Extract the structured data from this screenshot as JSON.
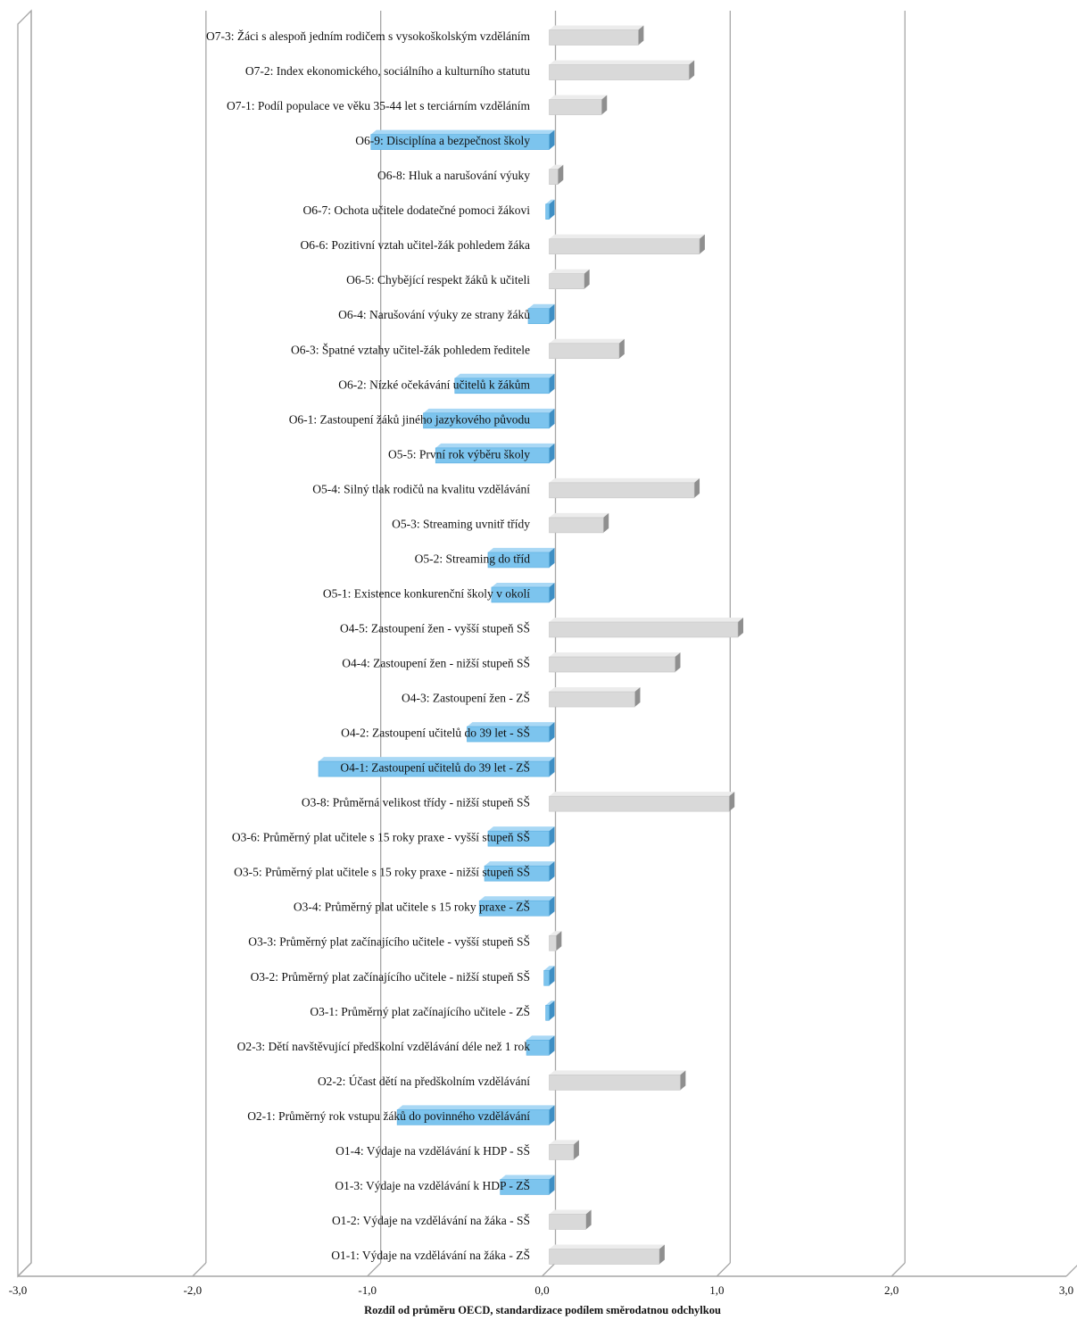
{
  "chart_data": {
    "type": "bar",
    "orientation": "horizontal",
    "style": "3d",
    "xlabel": "Rozdíl od průměru OECD, standardizace podílem směrodatnou odchylkou",
    "xlim": [
      -3.0,
      3.0
    ],
    "xticks": [
      -3.0,
      -2.0,
      -1.0,
      0.0,
      1.0,
      2.0,
      3.0
    ],
    "xtick_labels": [
      "-3,0",
      "-2,0",
      "-1,0",
      "0,0",
      "1,0",
      "2,0",
      "3,0"
    ],
    "grid": "vertical major gridlines",
    "colors": {
      "positive": "#d9d9d9",
      "negative": "#7cc4ee",
      "gridline": "#a6a6a6"
    },
    "categories": [
      "O1-1: Výdaje na vzdělávání na žáka - ZŠ",
      "O1-2: Výdaje na vzdělávání na žáka - SŠ",
      "O1-3: Výdaje na vzdělávání k HDP - ZŠ",
      "O1-4: Výdaje na vzdělávání k HDP - SŠ",
      "O2-1: Průměrný rok vstupu žáků do povinného vzdělávání",
      "O2-2: Účast dětí na předškolním vzdělávání",
      "O2-3: Dětí navštěvující předškolní vzdělávání déle než 1 rok",
      "O3-1: Průměrný plat začínajícího učitele - ZŠ",
      "O3-2: Průměrný plat začínajícího učitele - nižší stupeň SŠ",
      "O3-3: Průměrný plat začínajícího učitele - vyšší stupeň SŠ",
      "O3-4: Průměrný plat učitele s 15 roky praxe - ZŠ",
      "O3-5: Průměrný plat učitele s 15 roky praxe - nižší stupeň SŠ",
      "O3-6: Průměrný plat učitele s 15 roky praxe - vyšší stupeň SŠ",
      "O3-8: Průměrná velikost třídy - nižší stupeň SŠ",
      "O4-1: Zastoupení učitelů do 39 let - ZŠ",
      "O4-2: Zastoupení učitelů do 39 let - SŠ",
      "O4-3: Zastoupení žen - ZŠ",
      "O4-4: Zastoupení žen - nižší stupeň SŠ",
      "O4-5: Zastoupení žen - vyšší stupeň SŠ",
      "O5-1: Existence konkurenční školy v okolí",
      "O5-2: Streaming do tříd",
      "O5-3: Streaming uvnitř třídy",
      "O5-4: Silný tlak rodičů na kvalitu vzdělávání",
      "O5-5: První rok výběru školy",
      "O6-1: Zastoupení žáků jiného jazykového původu",
      "O6-2: Nízké očekávání učitelů k žákům",
      "O6-3: Špatné vztahy učitel-žák pohledem ředitele",
      "O6-4: Narušování výuky ze strany žáků",
      "O6-5: Chybějící respekt žáků k učiteli",
      "O6-6: Pozitivní vztah učitel-žák pohledem žáka",
      "O6-7: Ochota učitele dodatečné pomoci žákovi",
      "O6-8: Hluk a narušování výuky",
      "O6-9: Disciplína a bezpečnost školy",
      "O7-1: Podíl populace ve věku 35-44 let s terciárním vzděláním",
      "O7-2: Index ekonomického, sociálního a kulturního statutu",
      "O7-3: Žáci s alespoň jedním rodičem s vysokoškolským vzděláním"
    ],
    "values": [
      0.63,
      0.21,
      -0.28,
      0.14,
      -0.87,
      0.75,
      -0.13,
      -0.02,
      -0.03,
      0.04,
      -0.4,
      -0.37,
      -0.35,
      1.03,
      -1.32,
      -0.47,
      0.49,
      0.72,
      1.08,
      -0.33,
      -0.35,
      0.31,
      0.83,
      -0.65,
      -0.72,
      -0.54,
      0.4,
      -0.12,
      0.2,
      0.86,
      -0.02,
      0.05,
      -1.02,
      0.3,
      0.8,
      0.51
    ]
  }
}
